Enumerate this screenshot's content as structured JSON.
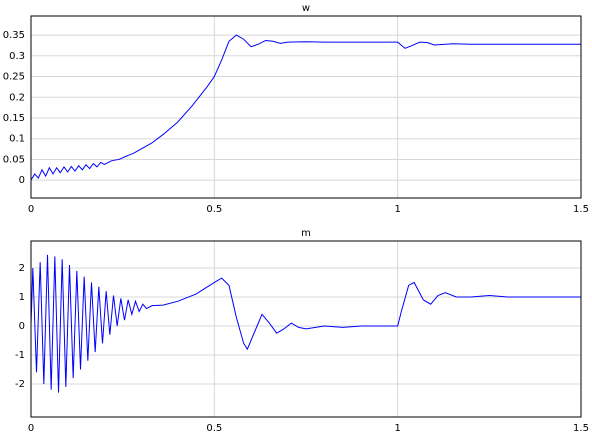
{
  "chart_data": [
    {
      "type": "line",
      "title": "w",
      "x": [
        0,
        0.01,
        0.02,
        0.03,
        0.04,
        0.05,
        0.06,
        0.07,
        0.08,
        0.09,
        0.1,
        0.11,
        0.12,
        0.13,
        0.14,
        0.15,
        0.16,
        0.17,
        0.18,
        0.19,
        0.2,
        0.22,
        0.24,
        0.26,
        0.28,
        0.3,
        0.33,
        0.36,
        0.4,
        0.44,
        0.48,
        0.5,
        0.52,
        0.54,
        0.56,
        0.58,
        0.6,
        0.62,
        0.64,
        0.66,
        0.68,
        0.7,
        0.75,
        0.8,
        0.9,
        1.0,
        1.02,
        1.04,
        1.06,
        1.08,
        1.1,
        1.15,
        1.2,
        1.3,
        1.5
      ],
      "series": [
        {
          "color": "#0000ff",
          "values": [
            0,
            0.015,
            0.005,
            0.025,
            0.01,
            0.03,
            0.015,
            0.03,
            0.018,
            0.032,
            0.02,
            0.033,
            0.022,
            0.035,
            0.025,
            0.037,
            0.028,
            0.04,
            0.032,
            0.043,
            0.038,
            0.047,
            0.05,
            0.058,
            0.065,
            0.075,
            0.09,
            0.11,
            0.14,
            0.18,
            0.225,
            0.25,
            0.29,
            0.335,
            0.35,
            0.34,
            0.322,
            0.328,
            0.337,
            0.335,
            0.33,
            0.333,
            0.334,
            0.333,
            0.333,
            0.333,
            0.318,
            0.325,
            0.333,
            0.332,
            0.326,
            0.329,
            0.328,
            0.328,
            0.328
          ]
        }
      ],
      "xlim": [
        0,
        1.5
      ],
      "ylim": [
        -0.043,
        0.396
      ],
      "xticks": [
        0,
        0.5,
        1,
        1.5
      ],
      "yticks": [
        0,
        0.05,
        0.1,
        0.15,
        0.2,
        0.25,
        0.3,
        0.35
      ],
      "grid": true
    },
    {
      "type": "line",
      "title": "m",
      "x": [
        0,
        0.005,
        0.015,
        0.025,
        0.035,
        0.045,
        0.055,
        0.065,
        0.075,
        0.085,
        0.095,
        0.105,
        0.115,
        0.125,
        0.135,
        0.145,
        0.155,
        0.165,
        0.175,
        0.185,
        0.195,
        0.205,
        0.215,
        0.225,
        0.235,
        0.245,
        0.255,
        0.265,
        0.275,
        0.285,
        0.295,
        0.305,
        0.315,
        0.33,
        0.36,
        0.4,
        0.45,
        0.5,
        0.52,
        0.54,
        0.56,
        0.58,
        0.59,
        0.61,
        0.63,
        0.65,
        0.67,
        0.69,
        0.71,
        0.73,
        0.75,
        0.8,
        0.85,
        0.9,
        1.0,
        1.01,
        1.03,
        1.045,
        1.07,
        1.09,
        1.11,
        1.13,
        1.16,
        1.2,
        1.25,
        1.3,
        1.4,
        1.5
      ],
      "series": [
        {
          "color": "#0000ff",
          "values": [
            0,
            2.0,
            -1.6,
            2.2,
            -2.0,
            2.45,
            -2.2,
            2.4,
            -2.3,
            2.3,
            -2.1,
            2.1,
            -1.8,
            1.9,
            -1.5,
            1.7,
            -1.2,
            1.5,
            -0.9,
            1.35,
            -0.6,
            1.2,
            -0.3,
            1.05,
            0,
            0.95,
            0.2,
            0.9,
            0.4,
            0.85,
            0.5,
            0.75,
            0.6,
            0.7,
            0.72,
            0.85,
            1.1,
            1.5,
            1.65,
            1.4,
            0.3,
            -0.6,
            -0.8,
            -0.2,
            0.4,
            0.1,
            -0.25,
            -0.1,
            0.1,
            -0.05,
            -0.1,
            0,
            -0.05,
            0,
            0,
            0.5,
            1.4,
            1.5,
            0.9,
            0.75,
            1.05,
            1.15,
            1.0,
            1.0,
            1.05,
            1.0,
            1.0,
            1.0
          ]
        }
      ],
      "xlim": [
        0,
        1.5
      ],
      "ylim": [
        -3.14,
        2.93
      ],
      "xticks": [
        0,
        0.5,
        1,
        1.5
      ],
      "yticks": [
        -2,
        -1,
        0,
        1,
        2
      ],
      "grid": true
    }
  ]
}
